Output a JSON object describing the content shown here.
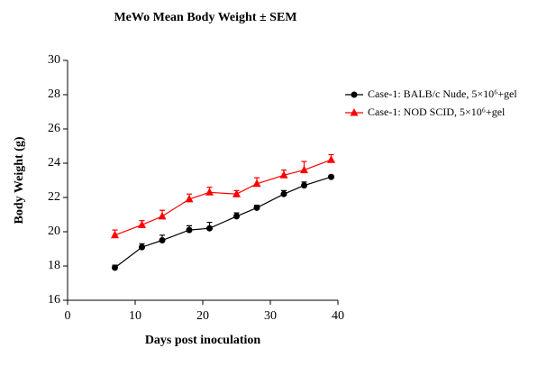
{
  "chart_data": {
    "type": "line",
    "title": "MeWo Mean Body Weight ± SEM",
    "x_label": "Days post inoculation",
    "y_label": "Body Weight (g)",
    "xlim": [
      0,
      40
    ],
    "xticks": [
      0,
      10,
      20,
      30,
      40
    ],
    "ylim": [
      16,
      30
    ],
    "yticks": [
      16,
      18,
      20,
      22,
      24,
      26,
      28,
      30
    ],
    "legend": "right",
    "series": [
      {
        "name": "Case-1: BALB/c Nude, 5×10⁶+gel",
        "color": "#000000",
        "marker": "circle",
        "x": [
          7,
          11,
          14,
          18,
          21,
          25,
          28,
          32,
          35,
          39
        ],
        "values": [
          17.9,
          19.1,
          19.5,
          20.1,
          20.2,
          20.9,
          21.4,
          22.2,
          22.7,
          23.2
        ],
        "errors": [
          0.15,
          0.2,
          0.3,
          0.25,
          0.35,
          0.2,
          0.15,
          0.2,
          0.2,
          0.1
        ]
      },
      {
        "name": "Case-1: NOD SCID, 5×10⁶+gel",
        "color": "#ff0000",
        "marker": "triangle",
        "x": [
          7,
          11,
          14,
          18,
          21,
          25,
          28,
          32,
          35,
          39
        ],
        "values": [
          19.8,
          20.4,
          20.9,
          21.9,
          22.3,
          22.2,
          22.8,
          23.3,
          23.6,
          24.2
        ],
        "errors": [
          0.3,
          0.25,
          0.35,
          0.3,
          0.3,
          0.2,
          0.35,
          0.3,
          0.5,
          0.3
        ]
      }
    ]
  }
}
